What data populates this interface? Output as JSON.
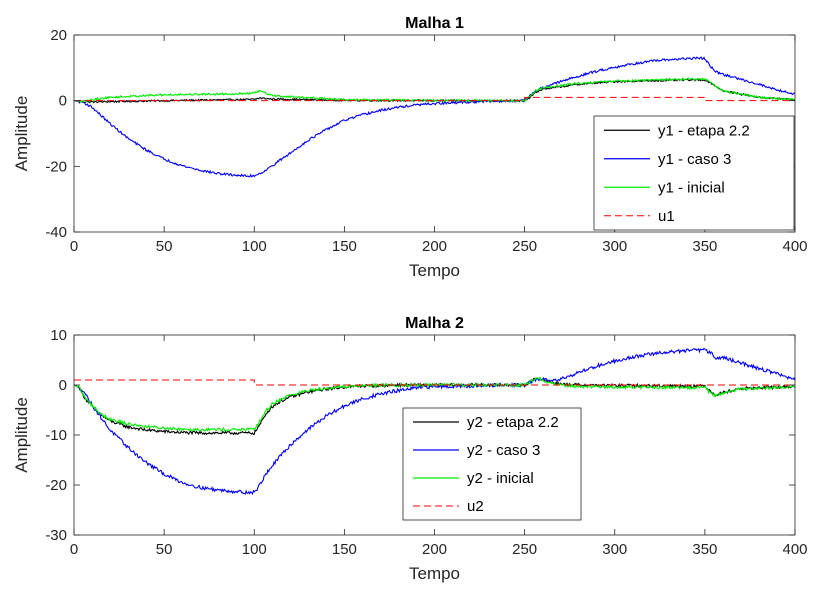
{
  "chart_data": [
    {
      "type": "line",
      "title": "Malha 1",
      "xlabel": "Tempo",
      "ylabel": "Amplitude",
      "xlim": [
        0,
        400
      ],
      "ylim": [
        -40,
        20
      ],
      "xticks": [
        0,
        50,
        100,
        150,
        200,
        250,
        300,
        350,
        400
      ],
      "yticks": [
        -40,
        -20,
        0,
        20
      ],
      "xtick_labels": [
        "0",
        "50",
        "100",
        "150",
        "200",
        "250",
        "300",
        "350",
        "400"
      ],
      "ytick_labels": [
        "-40",
        "-20",
        "0",
        "20"
      ],
      "grid": false,
      "legend": {
        "placement": "bottom-right"
      },
      "series": [
        {
          "name": "y1 - etapa 2.2",
          "color": "#000000",
          "style": "solid",
          "noise": 0.25,
          "x": [
            0,
            5,
            10,
            20,
            50,
            90,
            100,
            103,
            110,
            150,
            200,
            240,
            250,
            253,
            256,
            260,
            280,
            300,
            340,
            350,
            353,
            360,
            380,
            400
          ],
          "y": [
            0,
            -0.3,
            -0.4,
            -0.3,
            0,
            0.3,
            0.4,
            0.8,
            0.5,
            0.1,
            0,
            0,
            0,
            1.0,
            2.5,
            3.5,
            5,
            5.8,
            6.3,
            6.3,
            5.5,
            3,
            1.0,
            0.3
          ]
        },
        {
          "name": "y1 - caso 3",
          "color": "#0000ff",
          "style": "solid",
          "noise": 0.35,
          "x": [
            0,
            5,
            10,
            15,
            20,
            30,
            40,
            50,
            60,
            70,
            80,
            90,
            97,
            100,
            103,
            107,
            112,
            120,
            130,
            140,
            150,
            160,
            170,
            180,
            190,
            200,
            220,
            240,
            250,
            253,
            256,
            260,
            270,
            280,
            290,
            300,
            310,
            320,
            330,
            340,
            348,
            350,
            353,
            356,
            360,
            370,
            380,
            390,
            400
          ],
          "y": [
            0,
            -0.5,
            -2,
            -4.5,
            -7,
            -11.5,
            -15,
            -17.8,
            -19.8,
            -21.2,
            -22.2,
            -22.7,
            -23,
            -22.8,
            -22.2,
            -21,
            -19,
            -16,
            -12,
            -8.8,
            -6,
            -4.3,
            -3,
            -2,
            -1.3,
            -0.9,
            -0.4,
            -0.1,
            0,
            1.5,
            3,
            4,
            5.8,
            7.5,
            9,
            10.2,
            11.2,
            12,
            12.5,
            12.8,
            13.0,
            12.8,
            10.5,
            8.8,
            8,
            6.5,
            5,
            3.3,
            2
          ]
        },
        {
          "name": "y1 - inicial",
          "color": "#00ee00",
          "style": "solid",
          "noise": 0.3,
          "x": [
            0,
            5,
            10,
            20,
            50,
            90,
            100,
            103,
            110,
            150,
            200,
            240,
            250,
            253,
            256,
            260,
            280,
            300,
            340,
            350,
            353,
            360,
            380,
            400
          ],
          "y": [
            0,
            -0.3,
            0.3,
            1.0,
            1.8,
            2.1,
            2.3,
            3.0,
            1.5,
            0.3,
            0.1,
            0,
            0,
            1.3,
            3.0,
            3.9,
            5.3,
            6.0,
            6.6,
            6.6,
            5.5,
            3,
            1.0,
            0.3
          ]
        },
        {
          "name": "u1",
          "color": "#ff0000",
          "style": "dashed",
          "noise": 0,
          "x": [
            0,
            250,
            250,
            350,
            350,
            400
          ],
          "y": [
            0,
            0,
            1,
            1,
            0,
            0
          ]
        }
      ]
    },
    {
      "type": "line",
      "title": "Malha 2",
      "xlabel": "Tempo",
      "ylabel": "Amplitude",
      "xlim": [
        0,
        400
      ],
      "ylim": [
        -30,
        10
      ],
      "xticks": [
        0,
        50,
        100,
        150,
        200,
        250,
        300,
        350,
        400
      ],
      "yticks": [
        -30,
        -20,
        -10,
        0,
        10
      ],
      "xtick_labels": [
        "0",
        "50",
        "100",
        "150",
        "200",
        "250",
        "300",
        "350",
        "400"
      ],
      "ytick_labels": [
        "-30",
        "-20",
        "-10",
        "0",
        "10"
      ],
      "grid": false,
      "legend": {
        "placement": "center"
      },
      "series": [
        {
          "name": "y2 - etapa 2.2",
          "color": "#000000",
          "style": "solid",
          "noise": 0.3,
          "x": [
            0,
            3,
            5,
            7,
            10,
            15,
            20,
            30,
            40,
            50,
            60,
            70,
            80,
            90,
            100,
            103,
            107,
            110,
            115,
            120,
            130,
            140,
            150,
            160,
            170,
            180,
            200,
            250,
            255,
            258,
            262,
            270,
            280,
            300,
            340,
            350,
            353,
            356,
            360,
            370,
            400
          ],
          "y": [
            0,
            -0.5,
            -2,
            -3,
            -4.2,
            -6,
            -7.2,
            -8.4,
            -9,
            -9.3,
            -9.5,
            -9.6,
            -9.6,
            -9.6,
            -9.6,
            -8,
            -5.5,
            -4.3,
            -3.2,
            -2.4,
            -1.4,
            -0.8,
            -0.4,
            -0.2,
            -0.1,
            0,
            0,
            0,
            1.0,
            1.4,
            0.8,
            0.2,
            0,
            -0.1,
            -0.2,
            -0.2,
            -1.2,
            -2.0,
            -1.5,
            -0.7,
            -0.3
          ]
        },
        {
          "name": "y2 - caso 3",
          "color": "#0000ff",
          "style": "solid",
          "noise": 0.35,
          "x": [
            0,
            5,
            10,
            15,
            20,
            30,
            40,
            50,
            60,
            70,
            80,
            90,
            97,
            100,
            103,
            107,
            115,
            120,
            130,
            140,
            150,
            160,
            170,
            180,
            190,
            200,
            250,
            255,
            258,
            262,
            270,
            280,
            290,
            300,
            310,
            320,
            330,
            340,
            350,
            353,
            356,
            360,
            370,
            380,
            390,
            400
          ],
          "y": [
            0,
            -1,
            -4,
            -6.5,
            -9,
            -12.5,
            -15.5,
            -17.8,
            -19.5,
            -20.5,
            -21,
            -21.3,
            -21.5,
            -21.5,
            -20,
            -17.5,
            -14,
            -12,
            -8.8,
            -6.2,
            -4.2,
            -2.8,
            -1.8,
            -1.1,
            -0.6,
            -0.3,
            0,
            0.8,
            1.2,
            1.0,
            1.2,
            2.5,
            3.8,
            4.8,
            5.6,
            6.2,
            6.6,
            6.9,
            7.0,
            6.5,
            5.5,
            5.5,
            4.4,
            3.3,
            2.3,
            1.0
          ]
        },
        {
          "name": "y2 - inicial",
          "color": "#00ee00",
          "style": "solid",
          "noise": 0.3,
          "x": [
            0,
            3,
            5,
            7,
            10,
            15,
            20,
            30,
            40,
            50,
            60,
            70,
            80,
            90,
            100,
            103,
            107,
            110,
            115,
            120,
            130,
            140,
            150,
            160,
            170,
            180,
            200,
            250,
            255,
            258,
            262,
            270,
            280,
            300,
            340,
            350,
            353,
            356,
            360,
            370,
            400
          ],
          "y": [
            0,
            -0.5,
            -2,
            -3,
            -4.0,
            -5.8,
            -6.8,
            -7.8,
            -8.3,
            -8.6,
            -8.8,
            -8.9,
            -8.9,
            -8.9,
            -8.9,
            -7.3,
            -5,
            -3.8,
            -2.8,
            -2.0,
            -1.1,
            -0.6,
            -0.3,
            -0.1,
            0,
            0,
            0,
            0,
            1.0,
            1.4,
            0.6,
            0,
            -0.3,
            -0.4,
            -0.5,
            -0.5,
            -1.6,
            -2.3,
            -1.6,
            -0.8,
            -0.3
          ]
        },
        {
          "name": "u2",
          "color": "#ff0000",
          "style": "dashed",
          "noise": 0,
          "x": [
            0,
            100,
            100,
            400
          ],
          "y": [
            1,
            1,
            0,
            0
          ]
        }
      ]
    }
  ]
}
